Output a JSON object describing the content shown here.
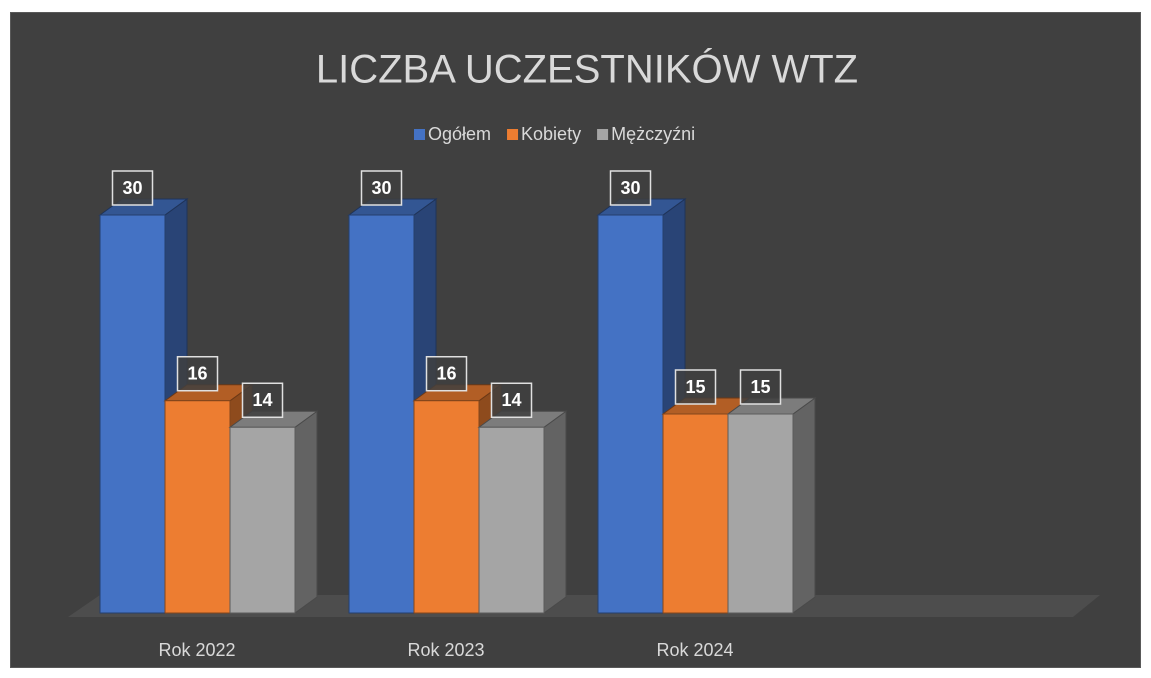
{
  "chart_data": {
    "type": "bar3d",
    "title": "LICZBA UCZESTNIKÓW WTZ",
    "categories": [
      "Rok 2022",
      "Rok 2023",
      "Rok 2024"
    ],
    "series": [
      {
        "name": "Ogółem",
        "color": "#4472c4",
        "values": [
          30,
          30,
          30
        ]
      },
      {
        "name": "Kobiety",
        "color": "#ed7d31",
        "values": [
          16,
          16,
          15
        ]
      },
      {
        "name": "Mężczyźni",
        "color": "#a5a5a5",
        "values": [
          14,
          14,
          15
        ]
      }
    ],
    "ylim": [
      0,
      30
    ],
    "legend": "top"
  }
}
